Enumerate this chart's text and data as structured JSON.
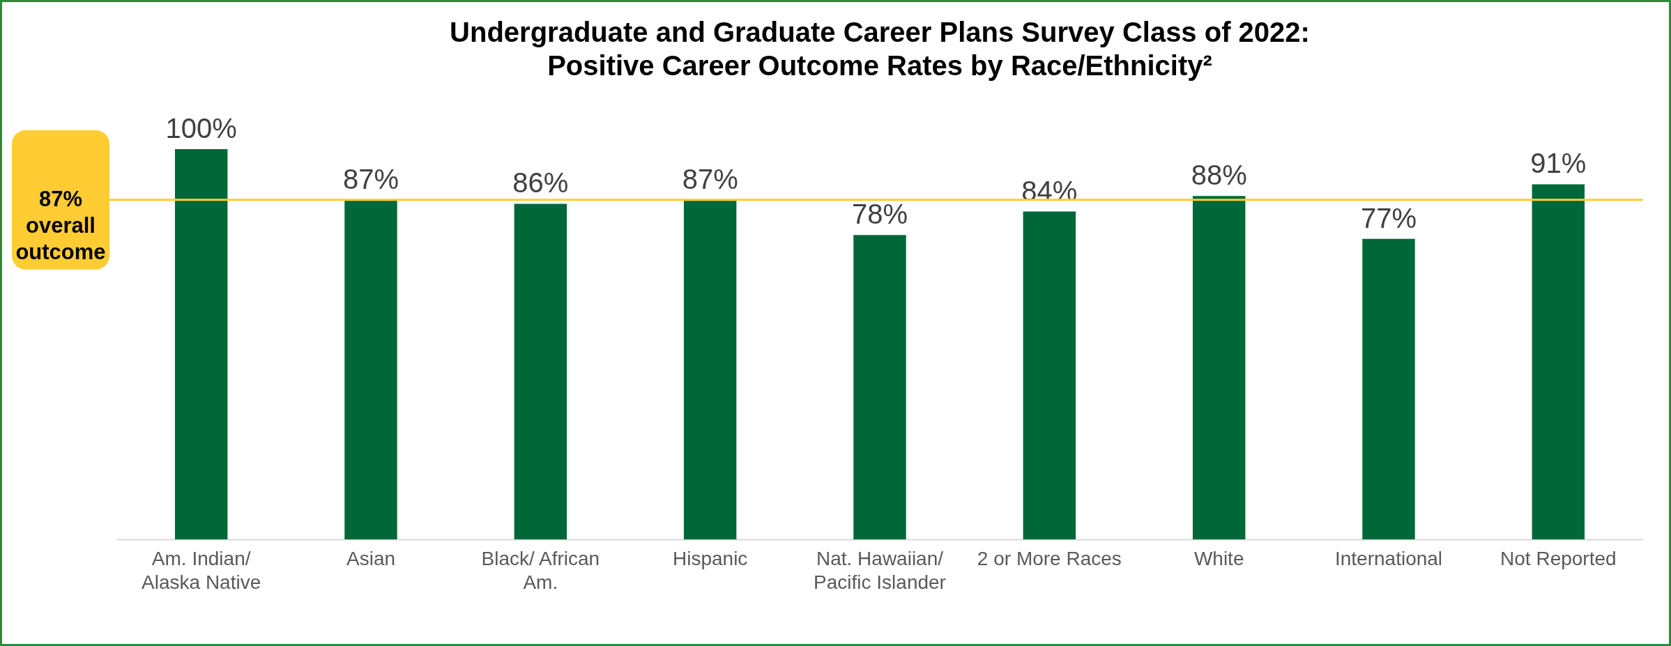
{
  "chart_data": {
    "type": "bar",
    "title": "Undergraduate and Graduate Career Plans Survey Class of 2022:\nPositive Career Outcome Rates by Race/Ethnicity²",
    "categories": [
      "Am. Indian/\nAlaska Native",
      "Asian",
      "Black/ African\nAm.",
      "Hispanic",
      "Nat. Hawaiian/\nPacific Islander",
      "2 or More Races",
      "White",
      "International",
      "Not Reported"
    ],
    "values": [
      100,
      87,
      86,
      87,
      78,
      84,
      88,
      77,
      91
    ],
    "value_labels": [
      "100%",
      "87%",
      "86%",
      "87%",
      "78%",
      "84%",
      "88%",
      "77%",
      "91%"
    ],
    "color": "#006838",
    "ref_lines": [
      {
        "axis": "y",
        "value": 87,
        "label": "87%\noverall\noutcome",
        "color": "#ffcc33"
      }
    ],
    "tick_labels": "x"
  }
}
